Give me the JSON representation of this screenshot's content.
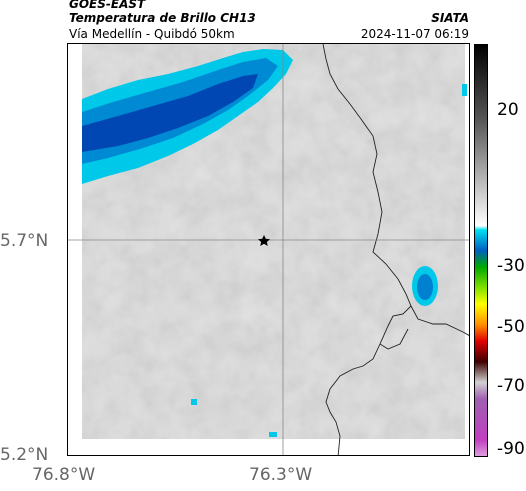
{
  "header": {
    "satellite": "GOES-EAST",
    "title": "Temperatura de Brillo CH13",
    "subtitle": "Vía Medellín - Quibdó 50km",
    "brand": "SIATA",
    "timestamp": "2024-11-07 06:19"
  },
  "axes": {
    "lat_ticks": [
      "5.7°N",
      "5.2°N"
    ],
    "lon_ticks": [
      "76.8°W",
      "76.3°W"
    ]
  },
  "colorbar": {
    "labels": [
      "20",
      "-30",
      "-50",
      "-70",
      "-90"
    ]
  },
  "map": {
    "marker_icon": "star-icon",
    "cold_cloud_color": "#0047b3",
    "cloud_edge_color": "#00c8e8",
    "background_gray": "#d4d4d4"
  }
}
